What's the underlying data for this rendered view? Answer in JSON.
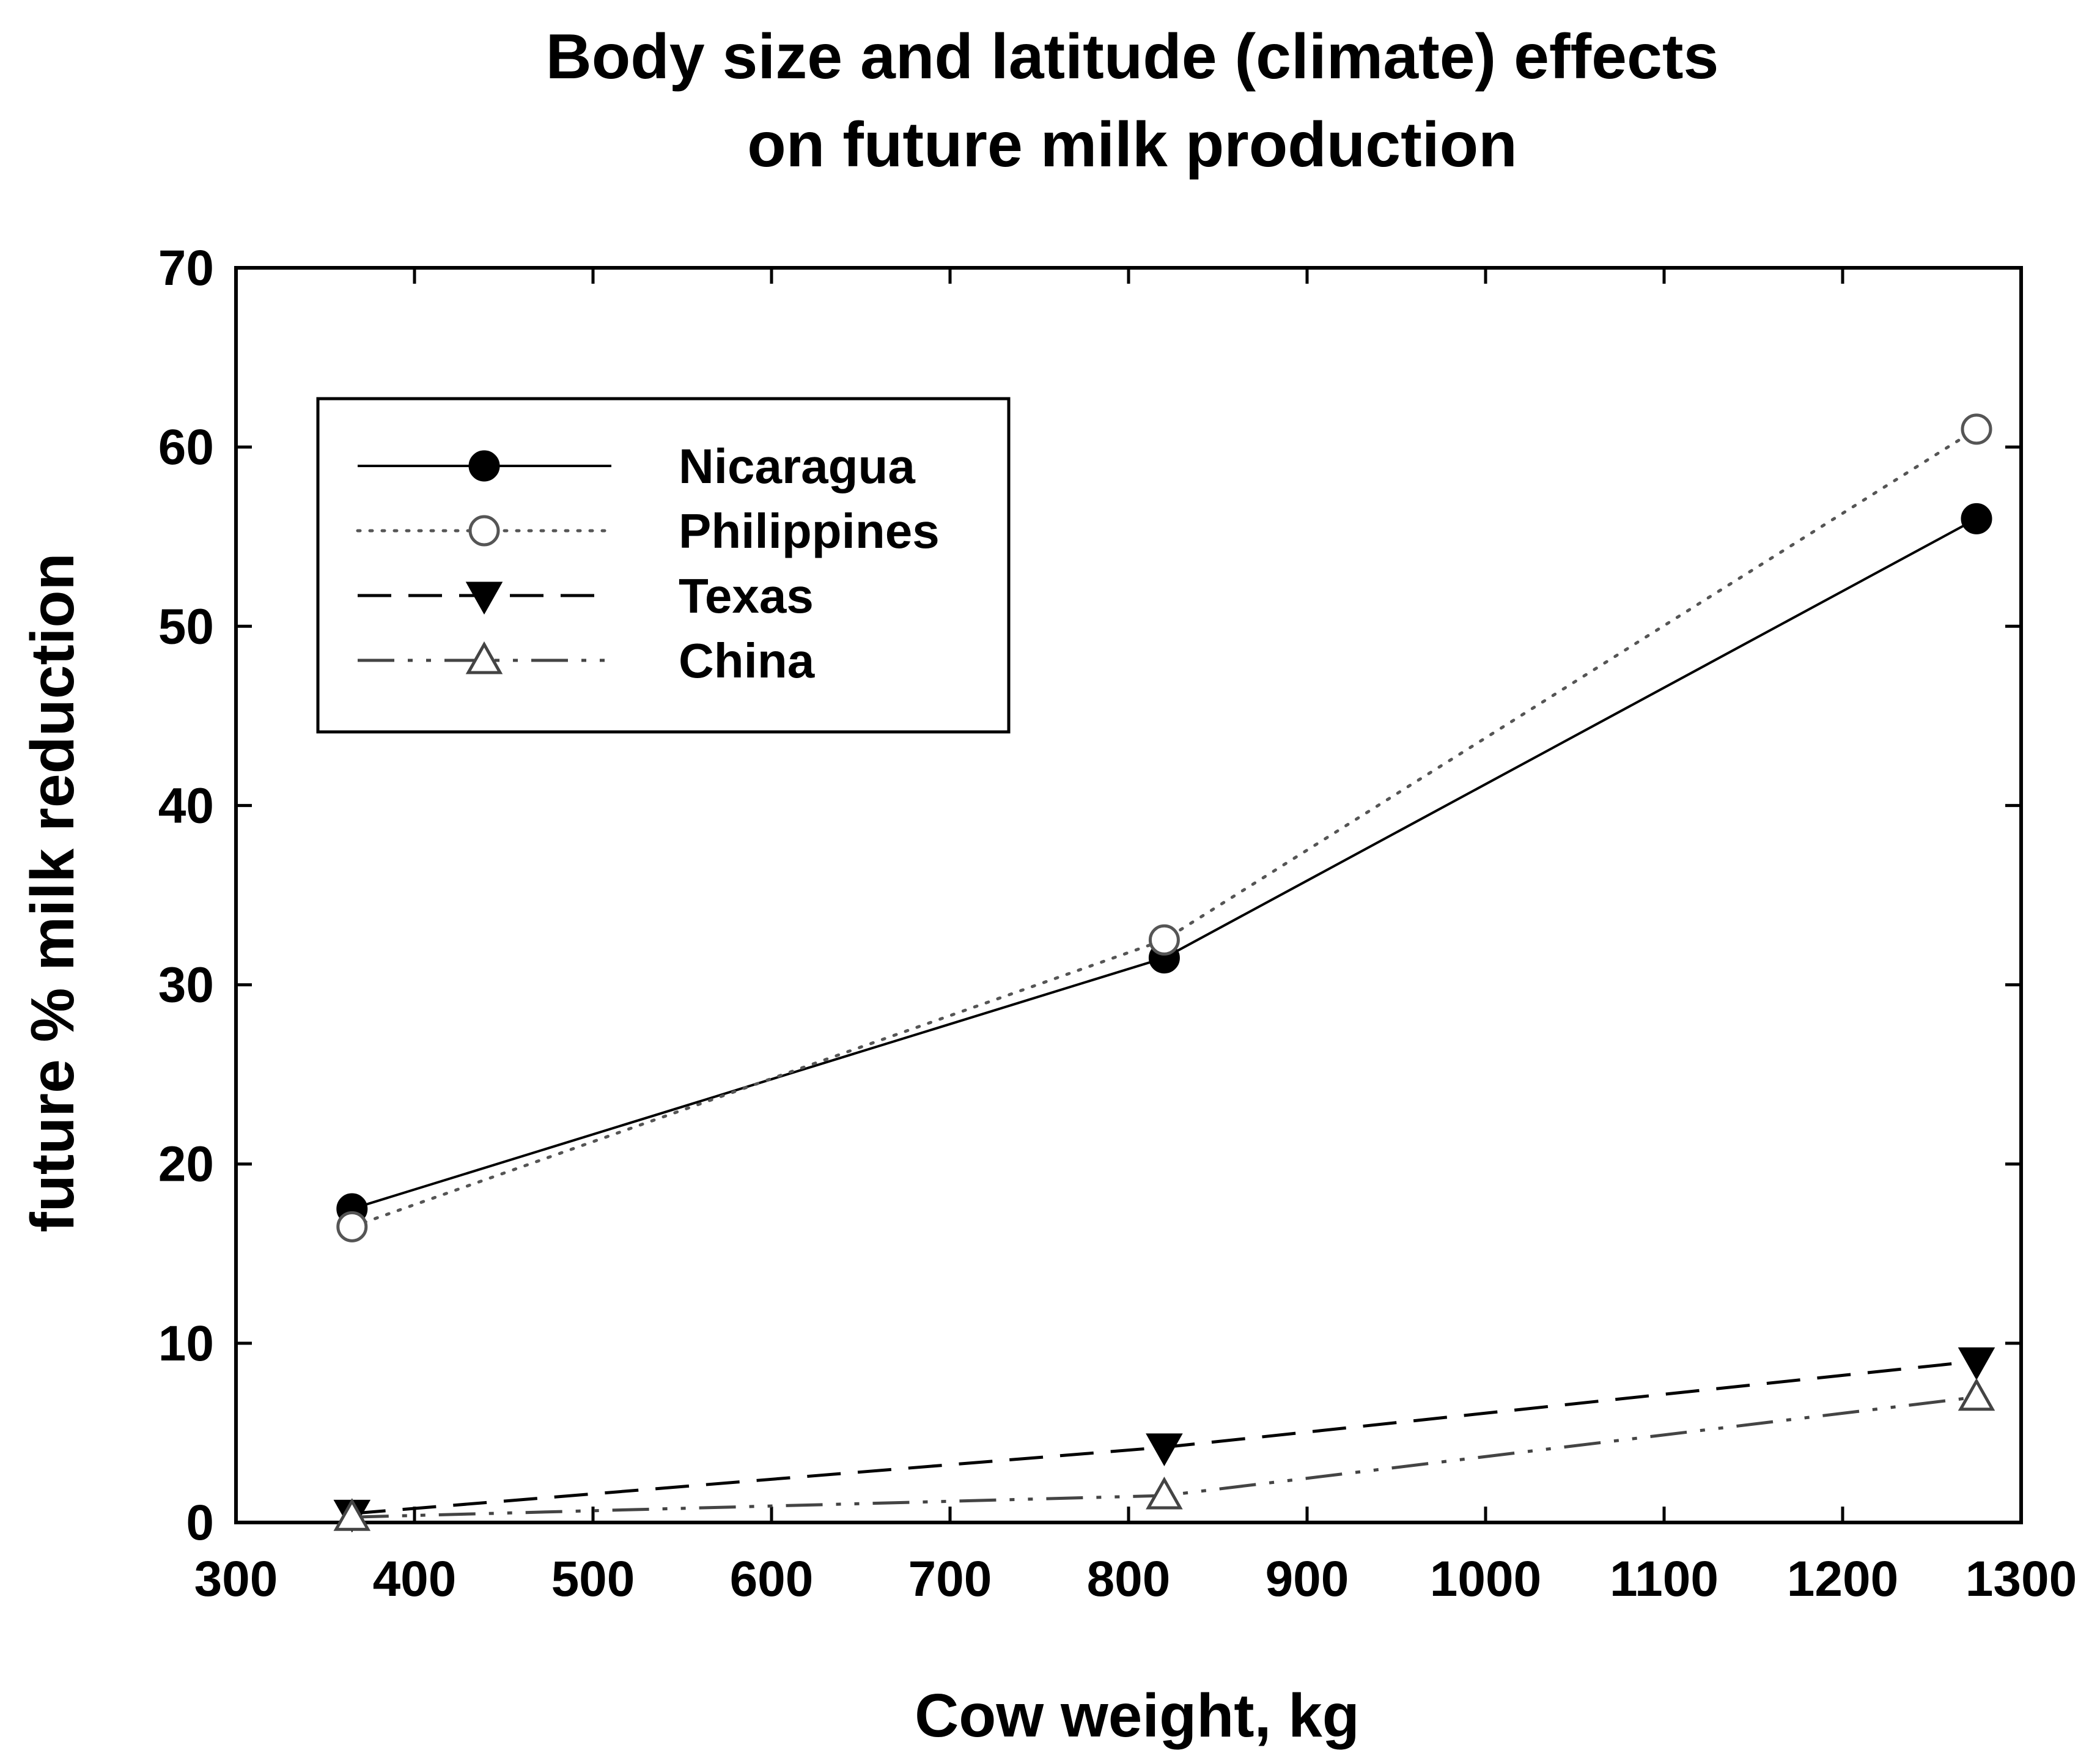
{
  "chart_data": {
    "type": "line",
    "title": [
      "Body size and latitude (climate) effects",
      "on future milk production"
    ],
    "xlabel": "Cow weight, kg",
    "ylabel": "future % milk reduction",
    "xlim": [
      300,
      1300
    ],
    "ylim": [
      0,
      70
    ],
    "x_ticks": [
      "300",
      "400",
      "500",
      "600",
      "700",
      "800",
      "900",
      "1000",
      "1100",
      "1200",
      "1300"
    ],
    "y_ticks": [
      "0",
      "10",
      "20",
      "30",
      "40",
      "50",
      "60",
      "70"
    ],
    "x": [
      365,
      820,
      1275
    ],
    "grid": false,
    "legend_position": "top-left",
    "series": [
      {
        "name": "Nicaragua",
        "values": [
          17.5,
          31.5,
          56
        ],
        "marker": "filled-circle",
        "line": "solid",
        "color": "#000000"
      },
      {
        "name": "Philippines",
        "values": [
          16.5,
          32.5,
          61
        ],
        "marker": "open-circle",
        "line": "dotted",
        "color": "#555555"
      },
      {
        "name": "Texas",
        "values": [
          0.5,
          4.2,
          9
        ],
        "marker": "filled-triangle-down",
        "line": "dashed",
        "color": "#000000"
      },
      {
        "name": "China",
        "values": [
          0.3,
          1.5,
          7
        ],
        "marker": "open-triangle-up",
        "line": "dash-dot-dot",
        "color": "#444444"
      }
    ]
  }
}
